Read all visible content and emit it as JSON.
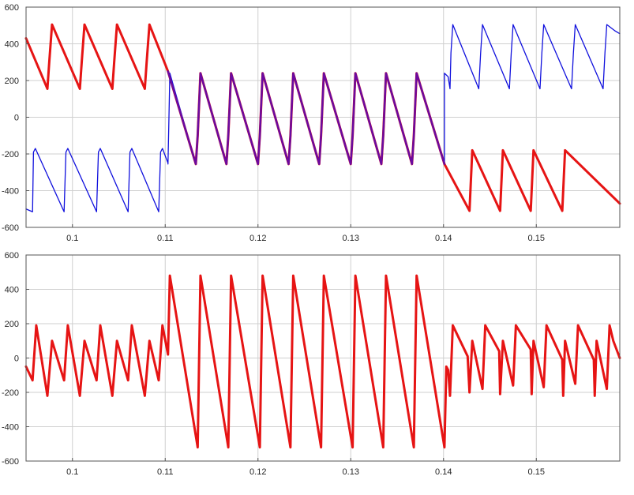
{
  "chart_data": [
    {
      "type": "line",
      "xlim": [
        0.095,
        0.159
      ],
      "ylim": [
        -600,
        600
      ],
      "xticks": [
        0.1,
        0.11,
        0.12,
        0.13,
        0.14,
        0.15
      ],
      "xtick_labels": [
        "0.1",
        "0.11",
        "0.12",
        "0.13",
        "0.14",
        "0.15"
      ],
      "yticks": [
        -600,
        -400,
        -200,
        0,
        200,
        400,
        600
      ],
      "ytick_labels": [
        "-600",
        "-400",
        "-200",
        "0",
        "200",
        "400",
        "600"
      ],
      "grid": true,
      "legend": "none",
      "series": [
        {
          "color": "#e61414",
          "width": 3,
          "points": [
            [
              0.095,
              430
            ],
            [
              0.0973,
              155
            ],
            [
              0.0975,
              300
            ],
            [
              0.0978,
              505
            ],
            [
              0.1008,
              155
            ],
            [
              0.101,
              300
            ],
            [
              0.1013,
              505
            ],
            [
              0.1043,
              155
            ],
            [
              0.1045,
              300
            ],
            [
              0.1048,
              505
            ],
            [
              0.1078,
              155
            ],
            [
              0.108,
              300
            ],
            [
              0.1083,
              505
            ],
            [
              0.1103,
              250
            ],
            [
              0.1133,
              -255
            ],
            [
              0.1135,
              -100
            ],
            [
              0.1138,
              240
            ],
            [
              0.1166,
              -255
            ],
            [
              0.1168,
              -100
            ],
            [
              0.1171,
              240
            ],
            [
              0.12,
              -255
            ],
            [
              0.1202,
              -100
            ],
            [
              0.1205,
              240
            ],
            [
              0.1233,
              -255
            ],
            [
              0.1235,
              -100
            ],
            [
              0.1238,
              240
            ],
            [
              0.1266,
              -255
            ],
            [
              0.1268,
              -100
            ],
            [
              0.1271,
              240
            ],
            [
              0.13,
              -255
            ],
            [
              0.1302,
              -100
            ],
            [
              0.1305,
              240
            ],
            [
              0.1333,
              -255
            ],
            [
              0.1335,
              -100
            ],
            [
              0.1338,
              240
            ],
            [
              0.1366,
              -255
            ],
            [
              0.1368,
              -100
            ],
            [
              0.1371,
              240
            ],
            [
              0.1401,
              -255
            ],
            [
              0.1428,
              -510
            ],
            [
              0.1431,
              -180
            ],
            [
              0.1461,
              -510
            ],
            [
              0.1464,
              -180
            ],
            [
              0.1494,
              -510
            ],
            [
              0.1497,
              -180
            ],
            [
              0.1528,
              -510
            ],
            [
              0.1531,
              -180
            ],
            [
              0.159,
              -470
            ]
          ]
        },
        {
          "color": "#1010dd",
          "width": 1.3,
          "points": [
            [
              0.095,
              -500
            ],
            [
              0.0957,
              -515
            ],
            [
              0.0958,
              -190
            ],
            [
              0.096,
              -170
            ],
            [
              0.0991,
              -515
            ],
            [
              0.0993,
              -190
            ],
            [
              0.0995,
              -170
            ],
            [
              0.1026,
              -515
            ],
            [
              0.1028,
              -190
            ],
            [
              0.103,
              -170
            ],
            [
              0.106,
              -515
            ],
            [
              0.1062,
              -190
            ],
            [
              0.1064,
              -170
            ],
            [
              0.1093,
              -515
            ],
            [
              0.1095,
              -190
            ],
            [
              0.1097,
              -170
            ],
            [
              0.1103,
              -250
            ],
            [
              0.1103,
              -255
            ],
            [
              0.1105,
              240
            ],
            [
              0.1133,
              -255
            ],
            [
              0.1135,
              -100
            ],
            [
              0.1138,
              240
            ],
            [
              0.1166,
              -255
            ],
            [
              0.1168,
              -100
            ],
            [
              0.1171,
              240
            ],
            [
              0.12,
              -255
            ],
            [
              0.1202,
              -100
            ],
            [
              0.1205,
              240
            ],
            [
              0.1233,
              -255
            ],
            [
              0.1235,
              -100
            ],
            [
              0.1238,
              240
            ],
            [
              0.1266,
              -255
            ],
            [
              0.1268,
              -100
            ],
            [
              0.1271,
              240
            ],
            [
              0.13,
              -255
            ],
            [
              0.1302,
              -100
            ],
            [
              0.1305,
              240
            ],
            [
              0.1333,
              -255
            ],
            [
              0.1335,
              -100
            ],
            [
              0.1338,
              240
            ],
            [
              0.1366,
              -255
            ],
            [
              0.1368,
              -100
            ],
            [
              0.1371,
              240
            ],
            [
              0.1401,
              -255
            ],
            [
              0.1401,
              240
            ],
            [
              0.1405,
              220
            ],
            [
              0.1407,
              155
            ],
            [
              0.1408,
              350
            ],
            [
              0.141,
              505
            ],
            [
              0.1438,
              155
            ],
            [
              0.144,
              350
            ],
            [
              0.1442,
              505
            ],
            [
              0.1471,
              155
            ],
            [
              0.1473,
              350
            ],
            [
              0.1475,
              505
            ],
            [
              0.1504,
              155
            ],
            [
              0.1506,
              350
            ],
            [
              0.1508,
              505
            ],
            [
              0.1538,
              155
            ],
            [
              0.154,
              350
            ],
            [
              0.1542,
              505
            ],
            [
              0.1572,
              155
            ],
            [
              0.1574,
              350
            ],
            [
              0.1576,
              505
            ],
            [
              0.1585,
              470
            ],
            [
              0.159,
              455
            ]
          ]
        },
        {
          "color": "#6a0aa0",
          "width": 2.5,
          "points": [
            [
              0.1103,
              250
            ],
            [
              0.1133,
              -255
            ],
            [
              0.1135,
              -100
            ],
            [
              0.1138,
              240
            ],
            [
              0.1166,
              -255
            ],
            [
              0.1168,
              -100
            ],
            [
              0.1171,
              240
            ],
            [
              0.12,
              -255
            ],
            [
              0.1202,
              -100
            ],
            [
              0.1205,
              240
            ],
            [
              0.1233,
              -255
            ],
            [
              0.1235,
              -100
            ],
            [
              0.1238,
              240
            ],
            [
              0.1266,
              -255
            ],
            [
              0.1268,
              -100
            ],
            [
              0.1271,
              240
            ],
            [
              0.13,
              -255
            ],
            [
              0.1302,
              -100
            ],
            [
              0.1305,
              240
            ],
            [
              0.1333,
              -255
            ],
            [
              0.1335,
              -100
            ],
            [
              0.1338,
              240
            ],
            [
              0.1366,
              -255
            ],
            [
              0.1368,
              -100
            ],
            [
              0.1371,
              240
            ],
            [
              0.1401,
              -255
            ]
          ]
        }
      ]
    },
    {
      "type": "line",
      "xlim": [
        0.095,
        0.159
      ],
      "ylim": [
        -600,
        600
      ],
      "xticks": [
        0.1,
        0.11,
        0.12,
        0.13,
        0.14,
        0.15
      ],
      "xtick_labels": [
        "0.1",
        "0.11",
        "0.12",
        "0.13",
        "0.14",
        "0.15"
      ],
      "yticks": [
        -600,
        -400,
        -200,
        0,
        200,
        400,
        600
      ],
      "ytick_labels": [
        "-600",
        "-400",
        "-200",
        "0",
        "200",
        "400",
        "600"
      ],
      "grid": true,
      "legend": "none",
      "series": [
        {
          "color": "#e61414",
          "width": 3,
          "points": [
            [
              0.095,
              -50
            ],
            [
              0.0957,
              -130
            ],
            [
              0.0961,
              190
            ],
            [
              0.0973,
              -220
            ],
            [
              0.0978,
              100
            ],
            [
              0.0991,
              -130
            ],
            [
              0.0995,
              190
            ],
            [
              0.1008,
              -220
            ],
            [
              0.1013,
              100
            ],
            [
              0.1026,
              -130
            ],
            [
              0.103,
              190
            ],
            [
              0.1043,
              -220
            ],
            [
              0.1048,
              100
            ],
            [
              0.106,
              -130
            ],
            [
              0.1064,
              190
            ],
            [
              0.1078,
              -220
            ],
            [
              0.1083,
              100
            ],
            [
              0.1093,
              -130
            ],
            [
              0.1097,
              190
            ],
            [
              0.1103,
              20
            ],
            [
              0.1105,
              480
            ],
            [
              0.1135,
              -520
            ],
            [
              0.1138,
              480
            ],
            [
              0.1168,
              -520
            ],
            [
              0.1171,
              480
            ],
            [
              0.1202,
              -520
            ],
            [
              0.1205,
              480
            ],
            [
              0.1235,
              -520
            ],
            [
              0.1238,
              480
            ],
            [
              0.1268,
              -520
            ],
            [
              0.1271,
              480
            ],
            [
              0.1302,
              -520
            ],
            [
              0.1305,
              480
            ],
            [
              0.1335,
              -520
            ],
            [
              0.1338,
              480
            ],
            [
              0.1368,
              -520
            ],
            [
              0.1371,
              480
            ],
            [
              0.1401,
              -520
            ],
            [
              0.1403,
              -50
            ],
            [
              0.1405,
              -70
            ],
            [
              0.1407,
              -220
            ],
            [
              0.141,
              190
            ],
            [
              0.1426,
              10
            ],
            [
              0.1428,
              -200
            ],
            [
              0.1431,
              100
            ],
            [
              0.1442,
              -180
            ],
            [
              0.1445,
              190
            ],
            [
              0.146,
              40
            ],
            [
              0.1461,
              -210
            ],
            [
              0.1464,
              100
            ],
            [
              0.1475,
              -160
            ],
            [
              0.1478,
              190
            ],
            [
              0.1494,
              50
            ],
            [
              0.1495,
              -210
            ],
            [
              0.1497,
              100
            ],
            [
              0.1508,
              -170
            ],
            [
              0.1511,
              190
            ],
            [
              0.1528,
              -10
            ],
            [
              0.1529,
              -220
            ],
            [
              0.1531,
              100
            ],
            [
              0.1542,
              -150
            ],
            [
              0.1545,
              190
            ],
            [
              0.1562,
              -10
            ],
            [
              0.1563,
              -220
            ],
            [
              0.1565,
              100
            ],
            [
              0.1576,
              -180
            ],
            [
              0.1579,
              190
            ],
            [
              0.1583,
              100
            ],
            [
              0.159,
              0
            ]
          ]
        }
      ]
    }
  ]
}
